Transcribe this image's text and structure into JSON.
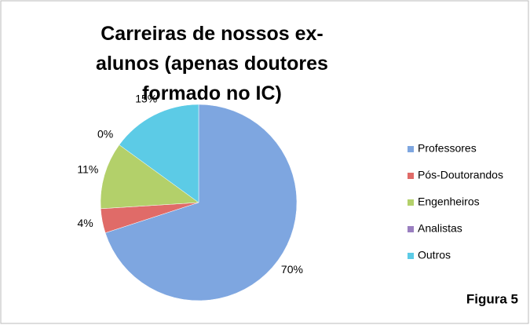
{
  "chart_data": {
    "type": "pie",
    "title": "Carreiras de nossos ex-alunos (apenas doutores formado no IC)",
    "categories": [
      "Professores",
      "Pós-Doutorandos",
      "Engenheiros",
      "Analistas",
      "Outros"
    ],
    "values": [
      70,
      4,
      11,
      0,
      15
    ],
    "value_labels": [
      "70%",
      "4%",
      "11%",
      "0%",
      "15%"
    ],
    "colors": [
      "#7ea6e0",
      "#e06b68",
      "#b3d06a",
      "#9a7fc0",
      "#5ccbe6"
    ],
    "legend": "right",
    "annotation": "Figura 5"
  }
}
